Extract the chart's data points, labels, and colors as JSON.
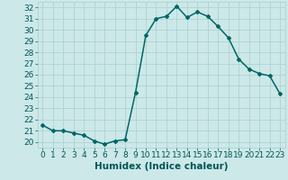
{
  "x": [
    0,
    1,
    2,
    3,
    4,
    5,
    6,
    7,
    8,
    9,
    10,
    11,
    12,
    13,
    14,
    15,
    16,
    17,
    18,
    19,
    20,
    21,
    22,
    23
  ],
  "y": [
    21.5,
    21.0,
    21.0,
    20.8,
    20.6,
    20.1,
    19.8,
    20.1,
    20.2,
    24.4,
    29.5,
    31.0,
    31.2,
    32.1,
    31.1,
    31.6,
    31.2,
    30.3,
    29.3,
    27.4,
    26.5,
    26.1,
    25.9,
    24.3
  ],
  "xlabel": "Humidex (Indice chaleur)",
  "ylim": [
    19.5,
    32.5
  ],
  "xlim": [
    -0.5,
    23.5
  ],
  "line_color": "#006666",
  "marker": "D",
  "marker_size": 2.0,
  "bg_color": "#cce8e8",
  "grid_color": "#aacece",
  "yticks": [
    20,
    21,
    22,
    23,
    24,
    25,
    26,
    27,
    28,
    29,
    30,
    31,
    32
  ],
  "xticks": [
    0,
    1,
    2,
    3,
    4,
    5,
    6,
    7,
    8,
    9,
    10,
    11,
    12,
    13,
    14,
    15,
    16,
    17,
    18,
    19,
    20,
    21,
    22,
    23
  ],
  "tick_label_color": "#005555",
  "xlabel_fontsize": 7.5,
  "tick_fontsize": 6.5,
  "line_width": 1.1
}
